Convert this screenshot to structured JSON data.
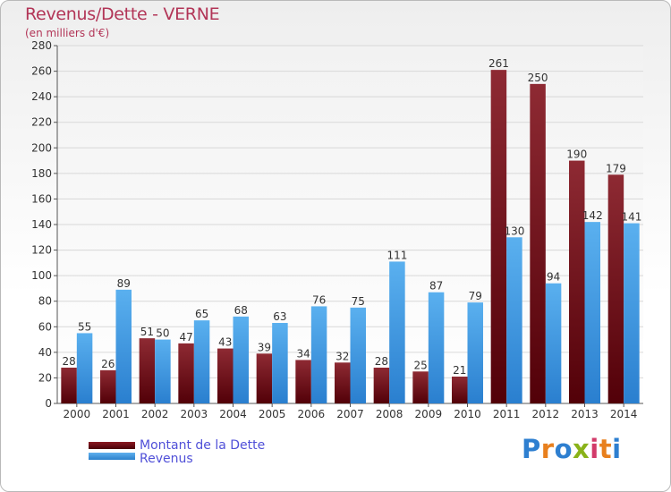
{
  "title": "Revenus/Dette - VERNE",
  "subtitle": "(en milliers d'€)",
  "logo_text": "Proxiti",
  "colors": {
    "debt": "#6b0a14",
    "revenue": "#2e8fe0",
    "title": "#b23557",
    "legend_text": "#5050d8"
  },
  "chart_data": {
    "type": "bar",
    "title": "Revenus/Dette - VERNE",
    "subtitle": "(en milliers d'€)",
    "categories": [
      "2000",
      "2001",
      "2002",
      "2003",
      "2004",
      "2005",
      "2006",
      "2007",
      "2008",
      "2009",
      "2010",
      "2011",
      "2012",
      "2013",
      "2014"
    ],
    "series": [
      {
        "name": "Montant de la Dette",
        "values": [
          28,
          26,
          51,
          47,
          43,
          39,
          34,
          32,
          28,
          25,
          21,
          261,
          250,
          190,
          179
        ]
      },
      {
        "name": "Revenus",
        "values": [
          55,
          89,
          50,
          65,
          68,
          63,
          76,
          75,
          111,
          87,
          79,
          130,
          94,
          142,
          141
        ]
      }
    ],
    "ylim": [
      0,
      280
    ],
    "yticks": [
      0,
      20,
      40,
      60,
      80,
      100,
      120,
      140,
      160,
      180,
      200,
      220,
      240,
      260,
      280
    ],
    "grid": true,
    "legend_position": "bottom-left"
  },
  "legend": [
    {
      "label": "Montant de la Dette"
    },
    {
      "label": "Revenus"
    }
  ]
}
